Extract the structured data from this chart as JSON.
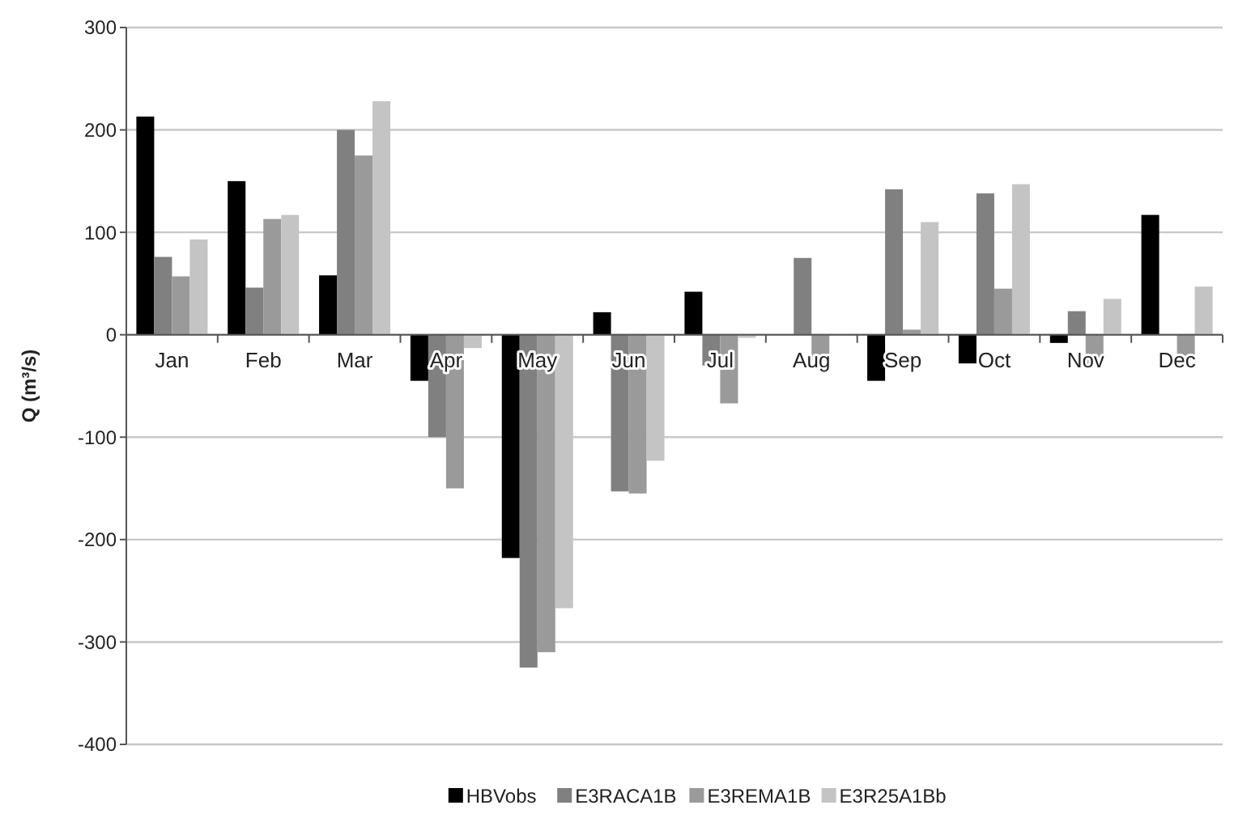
{
  "chart_data": {
    "type": "bar",
    "ylabel": "Q (m³/s)",
    "categories": [
      "Jan",
      "Feb",
      "Mar",
      "Apr",
      "May",
      "Jun",
      "Jul",
      "Aug",
      "Sep",
      "Oct",
      "Nov",
      "Dec"
    ],
    "series": [
      {
        "name": "HBVobs",
        "color": "#000000",
        "values": [
          213,
          150,
          58,
          -45,
          -218,
          22,
          42,
          0,
          -45,
          -28,
          -8,
          117
        ]
      },
      {
        "name": "E3RACA1B",
        "color": "#808080",
        "values": [
          76,
          46,
          200,
          -100,
          -325,
          -153,
          -30,
          75,
          142,
          138,
          23,
          0
        ]
      },
      {
        "name": "E3REMA1B",
        "color": "#9a9a9a",
        "values": [
          57,
          113,
          175,
          -150,
          -310,
          -155,
          -67,
          -25,
          5,
          45,
          -30,
          -25
        ]
      },
      {
        "name": "E3R25A1Bb",
        "color": "#c4c4c4",
        "values": [
          93,
          117,
          228,
          -13,
          -267,
          -123,
          -3,
          0,
          110,
          147,
          35,
          47
        ]
      }
    ],
    "ylim": [
      -400,
      300
    ],
    "yticks": [
      -400,
      -300,
      -200,
      -100,
      0,
      100,
      200,
      300
    ],
    "grid": "y",
    "legend": "bottom"
  }
}
